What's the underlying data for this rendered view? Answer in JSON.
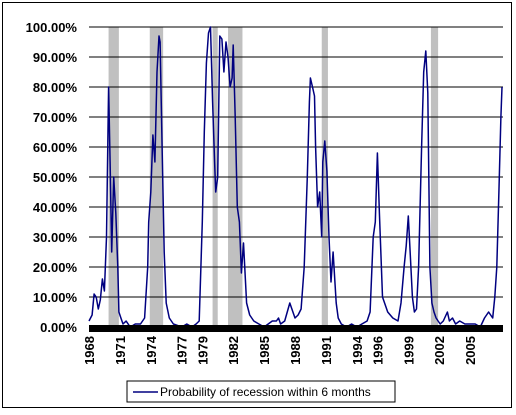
{
  "chart_data": {
    "type": "line",
    "title": "",
    "xlabel": "",
    "ylabel": "",
    "xlim": [
      1968.0,
      2008.2
    ],
    "ylim": [
      0,
      100
    ],
    "y_ticks": [
      "0.00%",
      "10.00%",
      "20.00%",
      "30.00%",
      "40.00%",
      "50.00%",
      "60.00%",
      "70.00%",
      "80.00%",
      "90.00%",
      "100.00%"
    ],
    "x_ticks": [
      "1968",
      "1971",
      "1974",
      "1977",
      "1979",
      "1982",
      "1985",
      "1988",
      "1991",
      "1994",
      "1996",
      "1999",
      "2002",
      "2005"
    ],
    "x_tick_positions": [
      1968,
      1971,
      1974,
      1977,
      1979,
      1982,
      1985,
      1988,
      1991,
      1994,
      1996,
      1999,
      2002,
      2005
    ],
    "grid": "horizontal",
    "legend_position": "bottom",
    "colors": {
      "line": "#000080",
      "recession": "#c0c0c0",
      "axis": "#000000"
    },
    "recessions": [
      [
        1969.9,
        1970.9
      ],
      [
        1973.9,
        1975.2
      ],
      [
        1980.0,
        1980.5
      ],
      [
        1981.5,
        1982.9
      ],
      [
        1990.6,
        1991.2
      ],
      [
        2001.2,
        2001.9
      ]
    ],
    "series": [
      {
        "name": "Probability of recession within 6 months",
        "x": [
          1968.0,
          1968.3,
          1968.5,
          1968.7,
          1968.9,
          1969.1,
          1969.3,
          1969.5,
          1969.7,
          1969.9,
          1970.05,
          1970.2,
          1970.4,
          1970.6,
          1970.8,
          1970.9,
          1971.1,
          1971.3,
          1971.6,
          1972.0,
          1972.5,
          1973.0,
          1973.4,
          1973.7,
          1973.8,
          1974.0,
          1974.2,
          1974.4,
          1974.6,
          1974.8,
          1974.9,
          1975.1,
          1975.3,
          1975.5,
          1975.8,
          1976.2,
          1977.0,
          1977.5,
          1978.0,
          1978.4,
          1978.7,
          1979.0,
          1979.2,
          1979.4,
          1979.6,
          1979.8,
          1980.0,
          1980.2,
          1980.3,
          1980.5,
          1980.7,
          1980.9,
          1981.1,
          1981.3,
          1981.5,
          1981.7,
          1981.9,
          1982.0,
          1982.2,
          1982.4,
          1982.6,
          1982.8,
          1983.0,
          1983.3,
          1983.6,
          1984.0,
          1984.5,
          1985.0,
          1985.4,
          1985.8,
          1986.2,
          1986.4,
          1986.6,
          1987.0,
          1987.5,
          1988.0,
          1988.3,
          1988.6,
          1988.9,
          1989.2,
          1989.4,
          1989.5,
          1989.7,
          1989.9,
          1990.0,
          1990.2,
          1990.4,
          1990.6,
          1990.7,
          1990.9,
          1991.1,
          1991.3,
          1991.5,
          1991.7,
          1992.0,
          1992.2,
          1992.5,
          1993.0,
          1993.5,
          1994.0,
          1994.5,
          1995.0,
          1995.3,
          1995.6,
          1995.8,
          1996.0,
          1996.2,
          1996.5,
          1997.0,
          1997.5,
          1998.0,
          1998.3,
          1998.6,
          1998.8,
          1999.0,
          1999.2,
          1999.4,
          1999.6,
          1999.8,
          2000.0,
          2000.3,
          2000.5,
          2000.7,
          2000.9,
          2001.1,
          2001.3,
          2001.5,
          2001.7,
          2001.9,
          2002.1,
          2002.4,
          2002.8,
          2003.0,
          2003.3,
          2003.6,
          2004.0,
          2004.5,
          2005.0,
          2005.5,
          2006.0,
          2006.4,
          2006.8,
          2007.2,
          2007.4,
          2007.6,
          2007.8,
          2008.0,
          2008.1
        ],
        "values": [
          2,
          4,
          11,
          10,
          6,
          9,
          16,
          12,
          30,
          80,
          55,
          25,
          50,
          38,
          20,
          5,
          3,
          1,
          2,
          0,
          1,
          1,
          3,
          20,
          35,
          45,
          64,
          55,
          85,
          97,
          95,
          60,
          25,
          8,
          3,
          1,
          0,
          1,
          0,
          1,
          2,
          35,
          65,
          88,
          98,
          100,
          75,
          55,
          45,
          50,
          97,
          96,
          85,
          95,
          90,
          80,
          83,
          94,
          70,
          40,
          35,
          18,
          28,
          8,
          4,
          2,
          1,
          0,
          1,
          2,
          2,
          3,
          1,
          2,
          8,
          3,
          4,
          6,
          20,
          50,
          75,
          83,
          80,
          77,
          60,
          40,
          45,
          30,
          55,
          62,
          52,
          30,
          15,
          25,
          8,
          3,
          1,
          0,
          1,
          0,
          1,
          2,
          5,
          30,
          35,
          58,
          38,
          10,
          5,
          3,
          2,
          8,
          20,
          27,
          37,
          24,
          10,
          5,
          6,
          20,
          60,
          85,
          92,
          78,
          20,
          8,
          5,
          3,
          2,
          1,
          2,
          5,
          2,
          3,
          1,
          2,
          1,
          1,
          1,
          0,
          3,
          5,
          3,
          10,
          20,
          45,
          70,
          80
        ]
      }
    ]
  }
}
